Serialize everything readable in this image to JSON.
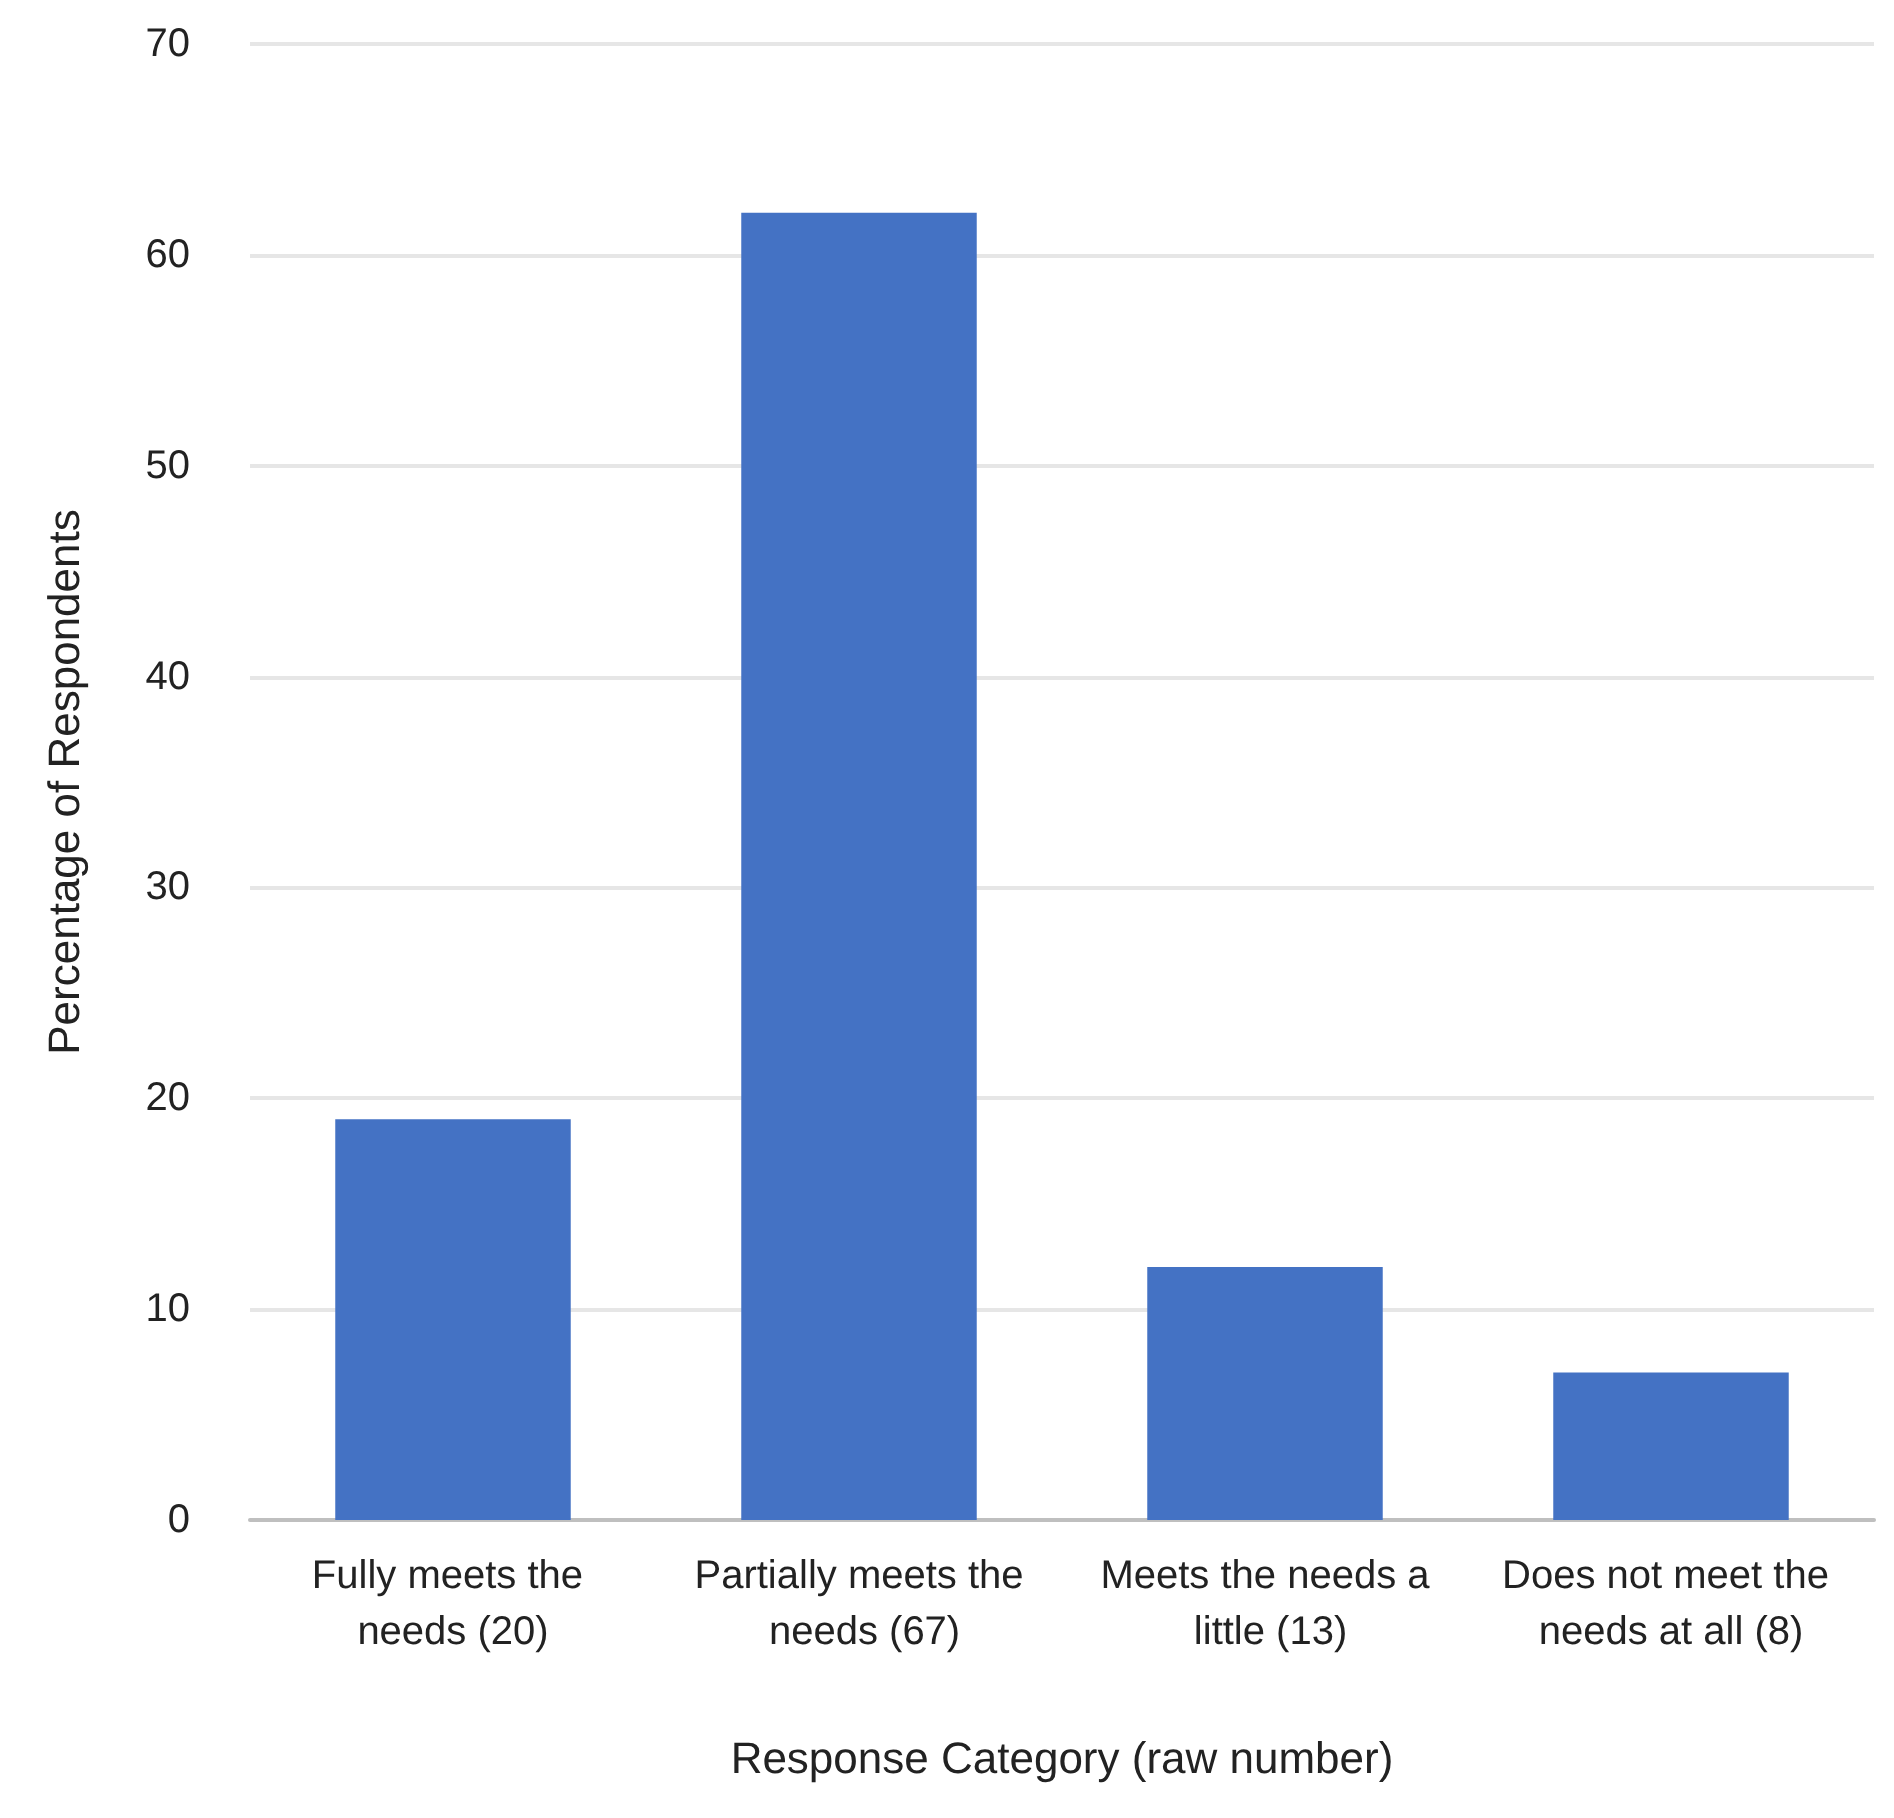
{
  "chart_data": {
    "type": "bar",
    "xlabel": "Response Category (raw number)",
    "ylabel": "Percentage of Respondents",
    "categories": [
      "Fully meets the needs (20)",
      "Partially meets the needs (67)",
      "Meets the needs a little (13)",
      "Does not meet the needs at all (8)"
    ],
    "values": [
      19,
      62,
      12,
      7
    ],
    "color": "#4472c4",
    "ylim": [
      0,
      70
    ],
    "yticks": [
      0,
      10,
      20,
      30,
      40,
      50,
      60,
      70
    ],
    "grid": "y"
  }
}
